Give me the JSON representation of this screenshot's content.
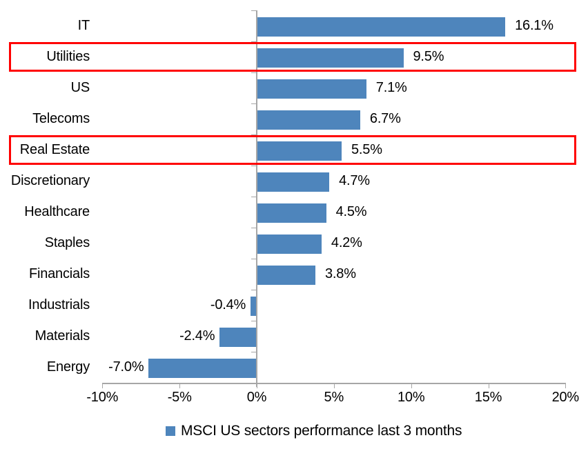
{
  "chart_data": {
    "type": "bar",
    "orientation": "horizontal",
    "title": "",
    "categories": [
      "IT",
      "Utilities",
      "US",
      "Telecoms",
      "Real Estate",
      "Discretionary",
      "Healthcare",
      "Staples",
      "Financials",
      "Industrials",
      "Materials",
      "Energy"
    ],
    "values": [
      16.1,
      9.5,
      7.1,
      6.7,
      5.5,
      4.7,
      4.5,
      4.2,
      3.8,
      -0.4,
      -2.4,
      -7.0
    ],
    "value_labels": [
      "16.1%",
      "9.5%",
      "7.1%",
      "6.7%",
      "5.5%",
      "4.7%",
      "4.5%",
      "4.2%",
      "3.8%",
      "-0.4%",
      "-2.4%",
      "-7.0%"
    ],
    "xlim": [
      -10,
      20
    ],
    "x_ticks": [
      -10,
      -5,
      0,
      5,
      10,
      15,
      20
    ],
    "x_tick_labels": [
      "-10%",
      "-5%",
      "0%",
      "5%",
      "10%",
      "15%",
      "20%"
    ],
    "grid": false,
    "legend": "MSCI US sectors performance last 3 months",
    "legend_position": "bottom-center",
    "highlighted_categories": [
      "Utilities",
      "Real Estate"
    ],
    "colors": {
      "bar": "#4E85BC",
      "highlight_border": "#FF0000",
      "axis": "#A6A6A6",
      "text": "#000000"
    }
  }
}
